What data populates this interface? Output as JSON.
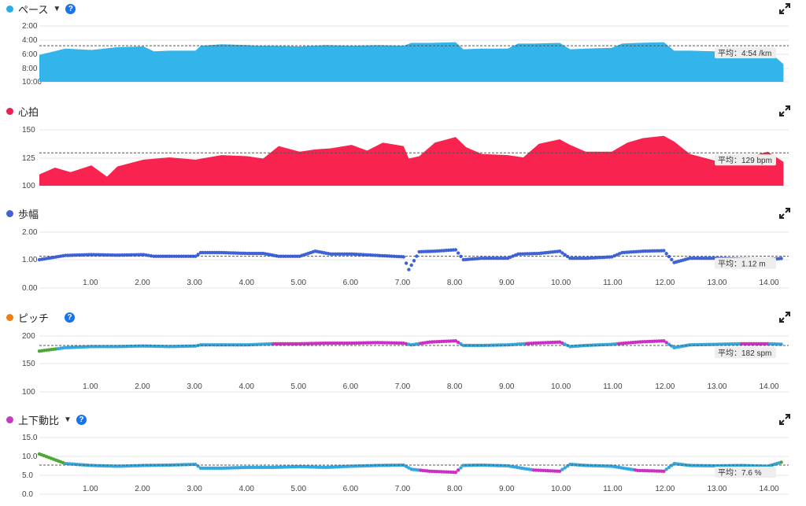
{
  "x_ticks": [
    "1.00",
    "2.00",
    "3.00",
    "4.00",
    "5.00",
    "6.00",
    "7.00",
    "8.00",
    "9.00",
    "10.00",
    "11.00",
    "12.00",
    "13.00",
    "14.00"
  ],
  "charts": [
    {
      "id": "pace",
      "title": "ペース",
      "dot_color": "#29aee6",
      "has_caret": true,
      "has_help": true,
      "y_ticks": [
        "2:00",
        "4:00",
        "6:00",
        "8:00",
        "10:00"
      ],
      "average_label": "平均：4:54 /km",
      "fill_color": "#33b4ea"
    },
    {
      "id": "heart_rate",
      "title": "心拍",
      "dot_color": "#e8214e",
      "has_caret": false,
      "has_help": false,
      "y_ticks": [
        "150",
        "125",
        "100"
      ],
      "average_label": "平均：129 bpm",
      "fill_color": "#f8244f"
    },
    {
      "id": "stride",
      "title": "歩幅",
      "dot_color": "#3f63d6",
      "has_caret": false,
      "has_help": false,
      "y_ticks": [
        "2.00",
        "1.00",
        "0.00"
      ],
      "average_label": "平均：1.12 m",
      "point_color": "#3f63d6"
    },
    {
      "id": "cadence",
      "title": "ピッチ",
      "dot_color": "#ef7d12",
      "has_caret": false,
      "has_help": true,
      "y_ticks": [
        "200",
        "150",
        "100"
      ],
      "average_label": "平均：182 spm",
      "point_colors": [
        "#33a8e0",
        "#cc2fc3",
        "#4ca832",
        "#e53935",
        "#ef7d12"
      ]
    },
    {
      "id": "vertical_ratio",
      "title": "上下動比",
      "dot_color": "#c43bc0",
      "has_caret": true,
      "has_help": true,
      "y_ticks": [
        "15.0",
        "10.0",
        "5.0",
        "0.0"
      ],
      "average_label": "平均：7.6 %",
      "point_colors": [
        "#33a8e0",
        "#cc2fc3",
        "#4ca832",
        "#e53935",
        "#ef7d12"
      ]
    }
  ],
  "chart_data": [
    {
      "type": "area",
      "title": "ペース",
      "x_unit": "km",
      "ylim": [
        "10:00",
        "2:00"
      ],
      "y_reversed": true,
      "average": "4:54",
      "x": [
        0.0,
        0.5,
        1.0,
        1.5,
        2.0,
        2.2,
        2.5,
        3.0,
        3.1,
        3.5,
        4.0,
        4.2,
        4.5,
        5.0,
        5.5,
        6.0,
        6.5,
        7.0,
        7.15,
        7.5,
        8.0,
        8.15,
        8.5,
        9.0,
        9.2,
        9.5,
        10.0,
        10.2,
        10.5,
        11.0,
        11.2,
        11.5,
        12.0,
        12.2,
        12.5,
        13.0,
        13.5,
        14.0,
        14.3
      ],
      "y_min_per_km": [
        6.2,
        5.3,
        5.5,
        5.1,
        5.0,
        5.7,
        5.6,
        5.6,
        4.9,
        4.7,
        4.8,
        4.9,
        4.9,
        5.0,
        4.8,
        4.9,
        4.8,
        4.9,
        4.5,
        4.5,
        4.4,
        5.4,
        5.3,
        5.3,
        4.6,
        4.6,
        4.5,
        5.4,
        5.3,
        5.2,
        4.6,
        4.5,
        4.4,
        5.6,
        5.6,
        5.7,
        5.6,
        5.6,
        7.5
      ]
    },
    {
      "type": "area",
      "title": "心拍",
      "x_unit": "km",
      "ylim": [
        100,
        150
      ],
      "average": 129,
      "x": [
        0.0,
        0.3,
        0.6,
        1.0,
        1.3,
        1.5,
        2.0,
        2.5,
        3.0,
        3.5,
        4.0,
        4.3,
        4.6,
        5.0,
        5.3,
        5.6,
        6.0,
        6.3,
        6.6,
        7.0,
        7.1,
        7.3,
        7.6,
        8.0,
        8.2,
        8.5,
        9.0,
        9.3,
        9.6,
        10.0,
        10.2,
        10.5,
        11.0,
        11.3,
        11.6,
        12.0,
        12.2,
        12.5,
        13.0,
        13.5,
        14.0,
        14.3
      ],
      "y_bpm": [
        110,
        116,
        112,
        118,
        108,
        117,
        123,
        125,
        123,
        127,
        126,
        124,
        135,
        130,
        132,
        133,
        136,
        131,
        138,
        135,
        124,
        126,
        138,
        143,
        134,
        128,
        127,
        125,
        137,
        141,
        136,
        130,
        130,
        138,
        142,
        144,
        139,
        128,
        122,
        124,
        130,
        121
      ]
    },
    {
      "type": "scatter",
      "title": "歩幅",
      "x_unit": "km",
      "ylim": [
        0,
        2
      ],
      "average": 1.12,
      "x": [
        0.0,
        0.5,
        1.0,
        1.5,
        2.0,
        2.2,
        2.5,
        3.0,
        3.1,
        3.5,
        4.0,
        4.3,
        4.6,
        5.0,
        5.3,
        5.6,
        6.0,
        6.5,
        7.0,
        7.1,
        7.3,
        7.6,
        8.0,
        8.15,
        8.5,
        9.0,
        9.2,
        9.6,
        10.0,
        10.2,
        10.5,
        11.0,
        11.2,
        11.6,
        12.0,
        12.2,
        12.5,
        13.0,
        13.5,
        14.0,
        14.3
      ],
      "y_m": [
        1.0,
        1.15,
        1.18,
        1.16,
        1.18,
        1.12,
        1.12,
        1.12,
        1.25,
        1.25,
        1.22,
        1.22,
        1.12,
        1.12,
        1.3,
        1.2,
        1.2,
        1.15,
        1.1,
        0.65,
        1.28,
        1.3,
        1.35,
        1.0,
        1.05,
        1.05,
        1.2,
        1.22,
        1.3,
        1.05,
        1.05,
        1.1,
        1.25,
        1.3,
        1.32,
        0.9,
        1.05,
        1.05,
        1.02,
        1.0,
        1.05
      ]
    },
    {
      "type": "scatter",
      "title": "ピッチ",
      "x_unit": "km",
      "ylim": [
        100,
        200
      ],
      "average": 182,
      "x": [
        0.0,
        0.5,
        1.0,
        1.5,
        2.0,
        2.5,
        3.0,
        3.1,
        3.5,
        4.0,
        4.5,
        5.0,
        5.5,
        6.0,
        6.5,
        7.0,
        7.15,
        7.5,
        8.0,
        8.15,
        8.5,
        9.0,
        9.5,
        10.0,
        10.2,
        10.5,
        11.0,
        11.5,
        12.0,
        12.2,
        12.5,
        13.0,
        13.5,
        14.0,
        14.3
      ],
      "y_spm": [
        172,
        178,
        180,
        180,
        181,
        180,
        181,
        183,
        183,
        183,
        185,
        185,
        186,
        186,
        187,
        186,
        183,
        188,
        190,
        182,
        182,
        183,
        186,
        188,
        180,
        182,
        184,
        188,
        190,
        178,
        183,
        184,
        185,
        185,
        184
      ]
    },
    {
      "type": "scatter",
      "title": "上下動比",
      "x_unit": "km",
      "ylim": [
        0,
        15
      ],
      "average": 7.6,
      "x": [
        0.0,
        0.5,
        1.0,
        1.5,
        2.0,
        2.5,
        3.0,
        3.1,
        3.5,
        4.0,
        4.5,
        5.0,
        5.5,
        6.0,
        6.5,
        7.0,
        7.15,
        7.5,
        8.0,
        8.15,
        8.5,
        9.0,
        9.5,
        10.0,
        10.2,
        10.5,
        11.0,
        11.5,
        12.0,
        12.2,
        12.5,
        13.0,
        13.5,
        14.0,
        14.3
      ],
      "y_percent": [
        10.5,
        8.0,
        7.5,
        7.3,
        7.5,
        7.6,
        7.8,
        6.8,
        6.8,
        7.0,
        7.0,
        7.2,
        7.0,
        7.3,
        7.5,
        7.6,
        6.5,
        6.0,
        5.7,
        7.5,
        7.6,
        7.4,
        6.3,
        6.0,
        7.8,
        7.5,
        7.3,
        6.2,
        6.0,
        8.0,
        7.5,
        7.4,
        7.5,
        7.3,
        8.5
      ]
    }
  ]
}
